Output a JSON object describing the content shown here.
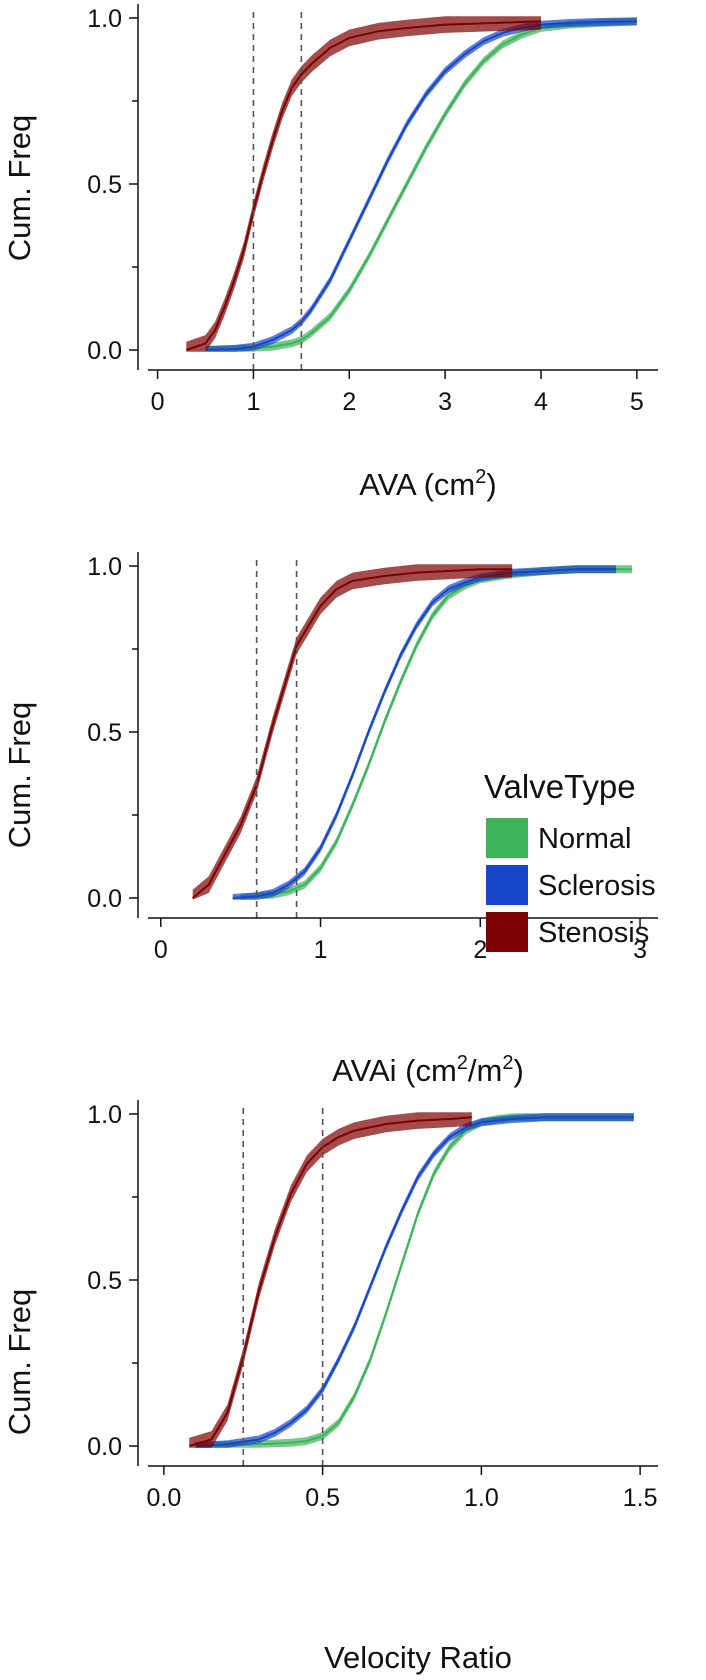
{
  "colors": {
    "Normal": "#3db35a",
    "Sclerosis": "#1747c8",
    "Stenosis": "#7d0000"
  },
  "legend": {
    "title": "ValveType",
    "items": [
      "Normal",
      "Sclerosis",
      "Stenosis"
    ]
  },
  "chart_data": [
    {
      "type": "line",
      "title": "",
      "xlabel_main": "AVA (cm",
      "xlabel_sup": "2",
      "xlabel_tail": ")",
      "ylabel": "Cum. Freq",
      "xlim": [
        -0.1,
        5.2
      ],
      "ylim": [
        0,
        1
      ],
      "xticks": [
        0,
        1,
        2,
        3,
        4,
        5
      ],
      "xtick_labels": [
        "0",
        "1",
        "2",
        "3",
        "4",
        "5"
      ],
      "yticks": [
        0,
        0.5,
        1
      ],
      "ytick_labels": [
        "0.0",
        "0.5",
        "1.0"
      ],
      "minor_yticks": [
        0.25,
        0.75
      ],
      "reference_lines": [
        1.0,
        1.5
      ],
      "series": [
        {
          "name": "Normal",
          "band": 0.012,
          "x": [
            0.5,
            1.0,
            1.2,
            1.4,
            1.5,
            1.6,
            1.8,
            2.0,
            2.2,
            2.4,
            2.6,
            2.8,
            3.0,
            3.2,
            3.4,
            3.6,
            3.8,
            4.0,
            4.3,
            4.6,
            5.0
          ],
          "y": [
            0,
            0.005,
            0.01,
            0.02,
            0.03,
            0.05,
            0.1,
            0.18,
            0.28,
            0.39,
            0.5,
            0.61,
            0.71,
            0.8,
            0.87,
            0.92,
            0.95,
            0.97,
            0.98,
            0.985,
            0.99
          ]
        },
        {
          "name": "Sclerosis",
          "band": 0.012,
          "x": [
            0.5,
            0.8,
            1.0,
            1.2,
            1.4,
            1.5,
            1.6,
            1.8,
            2.0,
            2.2,
            2.4,
            2.6,
            2.8,
            3.0,
            3.2,
            3.4,
            3.6,
            3.8,
            4.0,
            4.3,
            4.6,
            5.0
          ],
          "y": [
            0,
            0.003,
            0.01,
            0.03,
            0.06,
            0.085,
            0.12,
            0.21,
            0.33,
            0.45,
            0.57,
            0.68,
            0.77,
            0.84,
            0.89,
            0.93,
            0.955,
            0.97,
            0.98,
            0.985,
            0.988,
            0.99
          ]
        },
        {
          "name": "Stenosis",
          "band": 0.025,
          "x": [
            0.3,
            0.5,
            0.6,
            0.7,
            0.8,
            0.9,
            1.0,
            1.1,
            1.2,
            1.3,
            1.4,
            1.5,
            1.6,
            1.8,
            2.0,
            2.3,
            2.6,
            3.0,
            3.5,
            4.0
          ],
          "y": [
            0,
            0.02,
            0.06,
            0.13,
            0.21,
            0.3,
            0.42,
            0.53,
            0.63,
            0.72,
            0.79,
            0.83,
            0.86,
            0.91,
            0.94,
            0.96,
            0.97,
            0.98,
            0.985,
            0.99
          ]
        }
      ]
    },
    {
      "type": "line",
      "title": "",
      "xlabel_main": "AVAi (cm",
      "xlabel_sup": "2",
      "xlabel_mid": "/m",
      "xlabel_sup2": "2",
      "xlabel_tail": ")",
      "ylabel": "Cum. Freq",
      "xlim": [
        -0.08,
        3.1
      ],
      "ylim": [
        0,
        1
      ],
      "xticks": [
        0,
        1,
        2,
        3
      ],
      "xtick_labels": [
        "0",
        "1",
        "2",
        "3"
      ],
      "yticks": [
        0,
        0.5,
        1
      ],
      "ytick_labels": [
        "0.0",
        "0.5",
        "1.0"
      ],
      "minor_yticks": [
        0.25,
        0.75
      ],
      "reference_lines": [
        0.6,
        0.85
      ],
      "series": [
        {
          "name": "Normal",
          "band": 0.012,
          "x": [
            0.5,
            0.7,
            0.8,
            0.9,
            1.0,
            1.1,
            1.2,
            1.3,
            1.4,
            1.5,
            1.6,
            1.7,
            1.8,
            1.9,
            2.0,
            2.2,
            2.4,
            2.6,
            2.95
          ],
          "y": [
            0,
            0.01,
            0.02,
            0.04,
            0.09,
            0.17,
            0.28,
            0.4,
            0.53,
            0.65,
            0.76,
            0.85,
            0.91,
            0.94,
            0.96,
            0.975,
            0.985,
            0.99,
            0.99
          ]
        },
        {
          "name": "Sclerosis",
          "band": 0.012,
          "x": [
            0.45,
            0.6,
            0.7,
            0.8,
            0.9,
            1.0,
            1.1,
            1.2,
            1.3,
            1.4,
            1.5,
            1.6,
            1.7,
            1.8,
            1.9,
            2.0,
            2.2,
            2.4,
            2.6,
            2.85
          ],
          "y": [
            0,
            0.005,
            0.015,
            0.04,
            0.08,
            0.15,
            0.25,
            0.37,
            0.5,
            0.62,
            0.73,
            0.82,
            0.89,
            0.93,
            0.95,
            0.965,
            0.98,
            0.985,
            0.99,
            0.99
          ]
        },
        {
          "name": "Stenosis",
          "band": 0.025,
          "x": [
            0.2,
            0.3,
            0.4,
            0.5,
            0.6,
            0.7,
            0.8,
            0.85,
            0.9,
            1.0,
            1.1,
            1.2,
            1.4,
            1.6,
            1.8,
            2.0,
            2.2
          ],
          "y": [
            0,
            0.04,
            0.13,
            0.22,
            0.34,
            0.52,
            0.68,
            0.76,
            0.8,
            0.88,
            0.93,
            0.955,
            0.97,
            0.98,
            0.985,
            0.99,
            0.99
          ]
        }
      ]
    },
    {
      "type": "line",
      "title": "",
      "xlabel_main": "Velocity Ratio",
      "ylabel": "Cum. Freq",
      "xlim": [
        -0.05,
        1.55
      ],
      "ylim": [
        0,
        1
      ],
      "xticks": [
        0,
        0.5,
        1,
        1.5
      ],
      "xtick_labels": [
        "0.0",
        "0.5",
        "1.0",
        "1.5"
      ],
      "yticks": [
        0,
        0.5,
        1
      ],
      "ytick_labels": [
        "0.0",
        "0.5",
        "1.0"
      ],
      "minor_yticks": [
        0.25,
        0.75
      ],
      "reference_lines": [
        0.25,
        0.5
      ],
      "series": [
        {
          "name": "Normal",
          "band": 0.012,
          "x": [
            0.1,
            0.3,
            0.4,
            0.45,
            0.5,
            0.55,
            0.6,
            0.65,
            0.7,
            0.75,
            0.8,
            0.85,
            0.9,
            0.95,
            1.0,
            1.05,
            1.1,
            1.2,
            1.3,
            1.48
          ],
          "y": [
            0,
            0.005,
            0.01,
            0.015,
            0.03,
            0.07,
            0.15,
            0.26,
            0.4,
            0.55,
            0.7,
            0.82,
            0.9,
            0.95,
            0.975,
            0.985,
            0.99,
            0.99,
            0.99,
            0.99
          ]
        },
        {
          "name": "Sclerosis",
          "band": 0.012,
          "x": [
            0.1,
            0.2,
            0.3,
            0.35,
            0.4,
            0.45,
            0.5,
            0.55,
            0.6,
            0.65,
            0.7,
            0.75,
            0.8,
            0.85,
            0.9,
            0.95,
            1.0,
            1.1,
            1.2,
            1.3,
            1.48
          ],
          "y": [
            0,
            0.005,
            0.02,
            0.04,
            0.07,
            0.11,
            0.17,
            0.26,
            0.36,
            0.48,
            0.6,
            0.71,
            0.81,
            0.88,
            0.93,
            0.96,
            0.975,
            0.985,
            0.99,
            0.99,
            0.99
          ]
        },
        {
          "name": "Stenosis",
          "band": 0.025,
          "x": [
            0.08,
            0.15,
            0.2,
            0.25,
            0.3,
            0.35,
            0.4,
            0.45,
            0.5,
            0.55,
            0.6,
            0.7,
            0.8,
            0.9,
            0.97
          ],
          "y": [
            0,
            0.02,
            0.1,
            0.27,
            0.47,
            0.63,
            0.76,
            0.85,
            0.9,
            0.93,
            0.95,
            0.97,
            0.98,
            0.985,
            0.99
          ]
        }
      ]
    }
  ]
}
